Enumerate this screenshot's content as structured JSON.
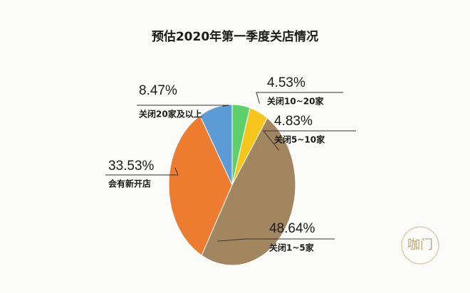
{
  "chart_data": {
    "type": "pie",
    "title": "预估2020年第一季度关店情况",
    "categories": [
      "关闭10~20家",
      "关闭5~10家",
      "关闭1~5家",
      "会有新开店",
      "关闭20家及以上"
    ],
    "values": [
      4.53,
      4.83,
      48.64,
      33.53,
      8.47
    ],
    "value_labels": [
      "4.53%",
      "4.83%",
      "48.64%",
      "33.53%",
      "8.47%"
    ],
    "colors": [
      "#5fcf6b",
      "#f6c61c",
      "#a1865f",
      "#ee7c30",
      "#5c9bd6"
    ]
  },
  "watermark": "咖门"
}
